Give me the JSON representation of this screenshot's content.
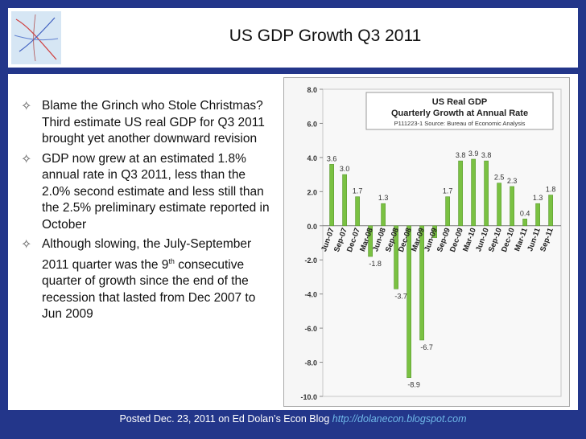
{
  "slide": {
    "title": "US GDP Growth Q3 2011"
  },
  "bullets": [
    {
      "text": "Blame the Grinch who Stole Christmas? Third estimate US real GDP for Q3 2011 brought yet another downward revision"
    },
    {
      "text": "GDP now grew at an estimated 1.8% annual rate in Q3 2011, less than the 2.0% second estimate and less still than the 2.5% preliminary estimate reported in October"
    },
    {
      "text_before": "Although slowing, the July-September 2011 quarter was the 9",
      "sup": "th",
      "text_after": " consecutive quarter of growth since the end of the recession that lasted from Dec 2007 to Jun 2009"
    }
  ],
  "footer": {
    "text": "Posted Dec. 23, 2011 on Ed Dolan’s Econ Blog",
    "url": "http://dolanecon.blogspot.com"
  },
  "colors": {
    "background": "#23368a",
    "bar": "#7ac142",
    "url": "#6fb8e8"
  },
  "chart_data": {
    "type": "bar",
    "title": "US  Real GDP",
    "subtitle": "Quarterly Growth at Annual Rate",
    "source": "P111223-1 Source: Bureau of Economic Analysis",
    "ylim": [
      -10,
      8
    ],
    "yticks": [
      "8.0",
      "6.0",
      "4.0",
      "2.0",
      "0.0",
      "-2.0",
      "-4.0",
      "-6.0",
      "-8.0",
      "-10.0"
    ],
    "categories": [
      "Jun-07",
      "",
      "Sep-07",
      "",
      "Dec-07",
      "",
      "Mar-08",
      "",
      "Jun-08",
      "",
      "Sep-08",
      "",
      "Dec-08",
      "",
      "Mar-09",
      "",
      "Jun-09",
      "",
      "Sep-09",
      "",
      "Dec-09",
      "",
      "Mar-10",
      "",
      "Jun-10",
      "",
      "Sep-10",
      "",
      "Dec-10",
      "",
      "Mar-11",
      "",
      "Jun-11",
      "",
      "Sep-11"
    ],
    "values": [
      3.6,
      3.0,
      1.7,
      -1.8,
      1.3,
      -3.7,
      -8.9,
      -6.7,
      -0.7,
      1.7,
      3.8,
      3.9,
      3.8,
      2.5,
      2.3,
      0.4,
      1.3,
      1.8
    ],
    "labels": [
      "3.6",
      "3.0",
      "1.7",
      "-1.8",
      "1.3",
      "-3.7",
      "-8.9",
      "-6.7",
      "",
      "1.7",
      "3.8",
      "3.9",
      "3.8",
      "2.5",
      "2.3",
      "0.4",
      "1.3",
      "1.8"
    ],
    "xlabels": [
      "Jun-07",
      "Sep-07",
      "Dec-07",
      "Mar-08",
      "Jun-08",
      "Sep-08",
      "Dec-08",
      "Mar-09",
      "Jun-09",
      "Sep-09",
      "Dec-09",
      "Mar-10",
      "Jun-10",
      "Sep-10",
      "Dec-10",
      "Mar-11",
      "Jun-11",
      "Sep-11"
    ],
    "grid": false,
    "legend": "none"
  }
}
